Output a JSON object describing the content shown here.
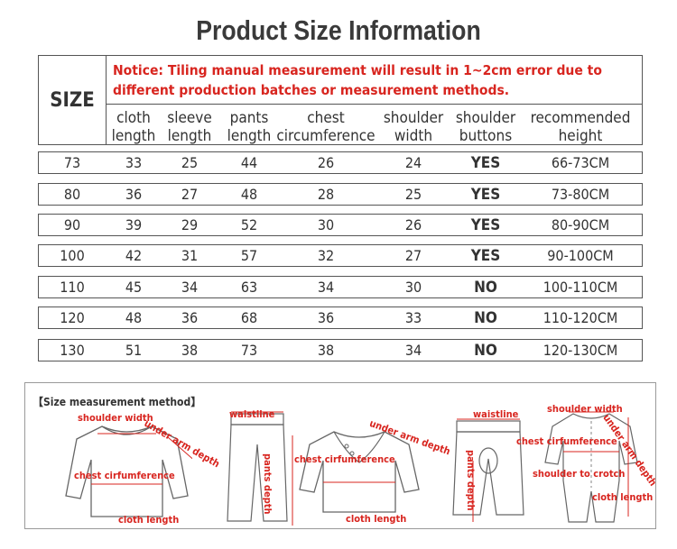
{
  "title": "Product Size Information",
  "notice": "Notice: Tiling manual measurement will result in 1~2cm error due to different production batches or measurement methods.",
  "size_header": "SIZE",
  "columns": [
    "cloth length",
    "sleeve length",
    "pants length",
    "chest circumference",
    "shoulder width",
    "shoulder buttons",
    "recommended height"
  ],
  "rows": [
    {
      "size": "73",
      "cloth": "33",
      "sleeve": "25",
      "pants": "44",
      "chest": "26",
      "shoulder": "24",
      "buttons": "YES",
      "height": "66-73CM"
    },
    {
      "size": "80",
      "cloth": "36",
      "sleeve": "27",
      "pants": "48",
      "chest": "28",
      "shoulder": "25",
      "buttons": "YES",
      "height": "73-80CM"
    },
    {
      "size": "90",
      "cloth": "39",
      "sleeve": "29",
      "pants": "52",
      "chest": "30",
      "shoulder": "26",
      "buttons": "YES",
      "height": "80-90CM"
    },
    {
      "size": "100",
      "cloth": "42",
      "sleeve": "31",
      "pants": "57",
      "chest": "32",
      "shoulder": "27",
      "buttons": "YES",
      "height": "90-100CM"
    },
    {
      "size": "110",
      "cloth": "45",
      "sleeve": "34",
      "pants": "63",
      "chest": "34",
      "shoulder": "30",
      "buttons": "NO",
      "height": "100-110CM"
    },
    {
      "size": "120",
      "cloth": "48",
      "sleeve": "36",
      "pants": "68",
      "chest": "36",
      "shoulder": "33",
      "buttons": "NO",
      "height": "110-120CM"
    },
    {
      "size": "130",
      "cloth": "51",
      "sleeve": "38",
      "pants": "73",
      "chest": "38",
      "shoulder": "34",
      "buttons": "NO",
      "height": "120-130CM"
    }
  ],
  "method": {
    "title": "【Size measurement method】",
    "labels": {
      "shoulder_width": "shoulder width",
      "under_arm_depth": "under arm depth",
      "chest_cirfumference": "chest cirfumference",
      "cloth_length": "cloth length",
      "waistline": "waistline",
      "pants_depth": "pants depth",
      "shoulder_to_crotch": "shoulder to crotch"
    }
  },
  "colors": {
    "accent": "#d8251f",
    "text": "#333333",
    "border": "#555555"
  }
}
